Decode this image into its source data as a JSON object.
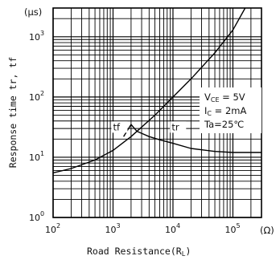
{
  "chart_data": {
    "type": "line",
    "xlabel": "Road Resistance(R",
    "xlabel_sub": "L",
    "xlabel_end": ")",
    "ylabel": "Response time tr, tf",
    "x_unit": "(Ω)",
    "y_unit": "(μs)",
    "x_scale": "log",
    "y_scale": "log",
    "xlim": [
      100,
      300000
    ],
    "ylim": [
      1,
      3000
    ],
    "grid": true,
    "x_ticks": [
      {
        "base": "10",
        "exp": "2",
        "value": 100
      },
      {
        "base": "10",
        "exp": "3",
        "value": 1000
      },
      {
        "base": "10",
        "exp": "4",
        "value": 10000
      },
      {
        "base": "10",
        "exp": "5",
        "value": 100000
      }
    ],
    "y_ticks": [
      {
        "base": "10",
        "exp": "0",
        "value": 1
      },
      {
        "base": "10",
        "exp": "1",
        "value": 10
      },
      {
        "base": "10",
        "exp": "2",
        "value": 100
      },
      {
        "base": "10",
        "exp": "3",
        "value": 1000
      }
    ],
    "series": [
      {
        "name": "tf",
        "x": [
          100,
          200,
          500,
          1000,
          2000,
          5000,
          10000,
          20000,
          50000,
          100000,
          160000
        ],
        "y": [
          5.5,
          6.5,
          9,
          13,
          22,
          50,
          100,
          200,
          540,
          1300,
          3000
        ]
      },
      {
        "name": "tr",
        "x": [
          1500,
          2000,
          2500,
          3000,
          4000,
          6000,
          10000,
          20000,
          50000,
          100000,
          300000
        ],
        "y": [
          22,
          35,
          27,
          25,
          22,
          19.5,
          17,
          14,
          12.5,
          12,
          12
        ]
      }
    ],
    "annotations": [
      {
        "text": "tf",
        "x": 1000,
        "y": 28
      },
      {
        "text": "tr",
        "x": 9500,
        "y": 28
      }
    ],
    "conditions": [
      {
        "main": "V",
        "sub": "CE",
        "rest": " = 5V"
      },
      {
        "main": "I",
        "sub": "C",
        "rest": " = 2mA"
      },
      {
        "main": "Ta=25℃",
        "sub": "",
        "rest": ""
      }
    ]
  }
}
